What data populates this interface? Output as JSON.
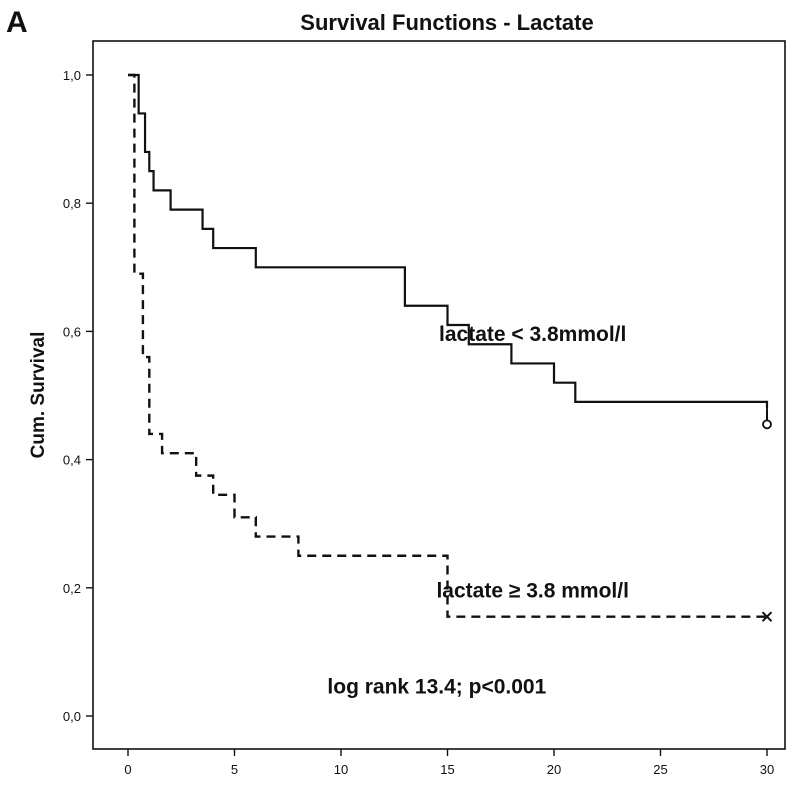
{
  "chart_data": {
    "type": "line",
    "panel_label": "A",
    "title": "Survival Functions - Lactate",
    "xlabel": "",
    "ylabel": "Cum. Survival",
    "xlim": [
      0,
      30
    ],
    "ylim": [
      0,
      1
    ],
    "x_ticks": [
      {
        "value": 0,
        "label": "0"
      },
      {
        "value": 5,
        "label": "5"
      },
      {
        "value": 10,
        "label": "10"
      },
      {
        "value": 15,
        "label": "15"
      },
      {
        "value": 20,
        "label": "20"
      },
      {
        "value": 25,
        "label": "25"
      },
      {
        "value": 30,
        "label": "30"
      }
    ],
    "y_ticks": [
      {
        "value": 0.0,
        "label": "0,0"
      },
      {
        "value": 0.2,
        "label": "0,2"
      },
      {
        "value": 0.4,
        "label": "0,4"
      },
      {
        "value": 0.6,
        "label": "0,6"
      },
      {
        "value": 0.8,
        "label": "0,8"
      },
      {
        "value": 1.0,
        "label": "1,0"
      }
    ],
    "grid": false,
    "series": [
      {
        "name": "lactate < 3.8mmol/l",
        "style": "solid",
        "color": "#111111",
        "censor_marker": "circle",
        "label_position": {
          "x": 19.0,
          "y": 0.585
        },
        "steps": [
          [
            0,
            1.0
          ],
          [
            0.5,
            0.94
          ],
          [
            0.8,
            0.88
          ],
          [
            1.0,
            0.85
          ],
          [
            1.2,
            0.82
          ],
          [
            2.0,
            0.79
          ],
          [
            3.5,
            0.76
          ],
          [
            4.0,
            0.73
          ],
          [
            6.0,
            0.7
          ],
          [
            13.0,
            0.64
          ],
          [
            15.0,
            0.61
          ],
          [
            16.0,
            0.58
          ],
          [
            18.0,
            0.55
          ],
          [
            20.0,
            0.52
          ],
          [
            21.0,
            0.49
          ],
          [
            30.0,
            0.48
          ]
        ],
        "censored": [
          [
            30.0,
            0.455
          ]
        ]
      },
      {
        "name": "lactate ≥ 3.8 mmol/l",
        "style": "dashed",
        "color": "#111111",
        "censor_marker": "x",
        "label_position": {
          "x": 19.0,
          "y": 0.185
        },
        "steps": [
          [
            0,
            1.0
          ],
          [
            0.3,
            0.69
          ],
          [
            0.7,
            0.56
          ],
          [
            1.0,
            0.44
          ],
          [
            1.6,
            0.41
          ],
          [
            3.2,
            0.375
          ],
          [
            4.0,
            0.345
          ],
          [
            5.0,
            0.31
          ],
          [
            6.0,
            0.28
          ],
          [
            8.0,
            0.25
          ],
          [
            15.0,
            0.155
          ],
          [
            30.0,
            0.155
          ]
        ],
        "censored": [
          [
            30.0,
            0.155
          ]
        ]
      }
    ],
    "annotation": {
      "text": "log rank 13.4; p<0.001",
      "x": 14.5,
      "y": 0.035
    }
  }
}
